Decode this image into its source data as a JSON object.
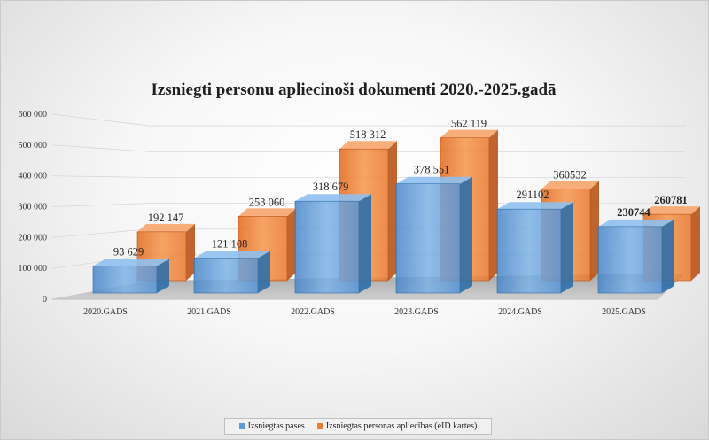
{
  "chart_data": {
    "type": "bar",
    "title": "Izsniegti personu apliecinoši dokumenti 2020.-2025.gadā",
    "categories": [
      "2020.GADS",
      "2021.GADS",
      "2022.GADS",
      "2023.GADS",
      "2024.GADS",
      "2025.GADS"
    ],
    "series": [
      {
        "name": "Izsniegtas pases",
        "values": [
          93629,
          121108,
          318679,
          378551,
          291102,
          230744
        ],
        "labels": [
          "93 629",
          "121 108",
          "318 679",
          "378 551",
          "291102",
          "230744"
        ],
        "color": "#5b9bd5"
      },
      {
        "name": "Izsniegtas personas apliecības (eID kartes)",
        "values": [
          192147,
          253060,
          518312,
          562119,
          360532,
          260781
        ],
        "labels": [
          "192 147",
          "253 060",
          "518 312",
          "562 119",
          "360532",
          "260781"
        ],
        "color": "#ed7d31"
      }
    ],
    "yticks": [
      "0",
      "100 000",
      "200 000",
      "300 000",
      "400 000",
      "500 000",
      "600 000"
    ],
    "ylim": [
      0,
      600000
    ],
    "legend_position": "bottom",
    "grid": true
  }
}
